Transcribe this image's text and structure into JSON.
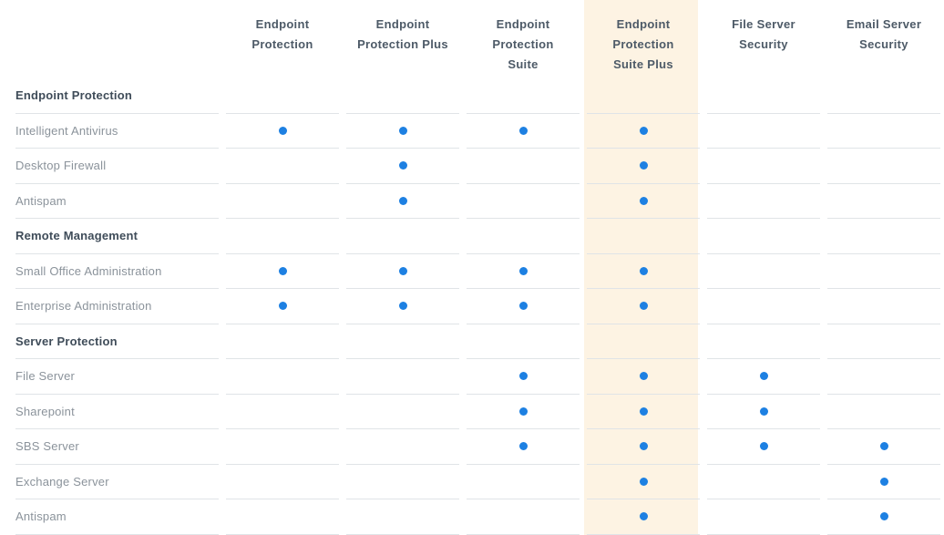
{
  "colors": {
    "dot": "#1d80e2",
    "highlight": "#fdf3e3",
    "line": "#e0e4e7",
    "header_text": "#4d5a67",
    "section_text": "#3f4c59",
    "feature_text": "#8b939b"
  },
  "columns": [
    {
      "label_lines": [
        "Endpoint",
        "Protection"
      ],
      "highlight": false
    },
    {
      "label_lines": [
        "Endpoint",
        "Protection Plus"
      ],
      "highlight": false
    },
    {
      "label_lines": [
        "Endpoint",
        "Protection",
        "Suite"
      ],
      "highlight": false
    },
    {
      "label_lines": [
        "Endpoint",
        "Protection",
        "Suite Plus"
      ],
      "highlight": true
    },
    {
      "label_lines": [
        "File Server",
        "Security"
      ],
      "highlight": false
    },
    {
      "label_lines": [
        "Email Server",
        "Security"
      ],
      "highlight": false
    }
  ],
  "rows": [
    {
      "type": "section",
      "label": "Endpoint Protection"
    },
    {
      "type": "feature",
      "label": "Intelligent Antivirus",
      "dots": [
        true,
        true,
        true,
        true,
        false,
        false
      ]
    },
    {
      "type": "feature",
      "label": "Desktop Firewall",
      "dots": [
        false,
        true,
        false,
        true,
        false,
        false
      ]
    },
    {
      "type": "feature",
      "label": "Antispam",
      "dots": [
        false,
        true,
        false,
        true,
        false,
        false
      ]
    },
    {
      "type": "section",
      "label": "Remote Management"
    },
    {
      "type": "feature",
      "label": "Small Office Administration",
      "dots": [
        true,
        true,
        true,
        true,
        false,
        false
      ]
    },
    {
      "type": "feature",
      "label": "Enterprise Administration",
      "dots": [
        true,
        true,
        true,
        true,
        false,
        false
      ]
    },
    {
      "type": "section",
      "label": "Server Protection"
    },
    {
      "type": "feature",
      "label": "File Server",
      "dots": [
        false,
        false,
        true,
        true,
        true,
        false
      ]
    },
    {
      "type": "feature",
      "label": "Sharepoint",
      "dots": [
        false,
        false,
        true,
        true,
        true,
        false
      ]
    },
    {
      "type": "feature",
      "label": "SBS Server",
      "dots": [
        false,
        false,
        true,
        true,
        true,
        true
      ]
    },
    {
      "type": "feature",
      "label": "Exchange Server",
      "dots": [
        false,
        false,
        false,
        true,
        false,
        true
      ]
    },
    {
      "type": "feature",
      "label": "Antispam",
      "dots": [
        false,
        false,
        false,
        true,
        false,
        true
      ]
    }
  ]
}
